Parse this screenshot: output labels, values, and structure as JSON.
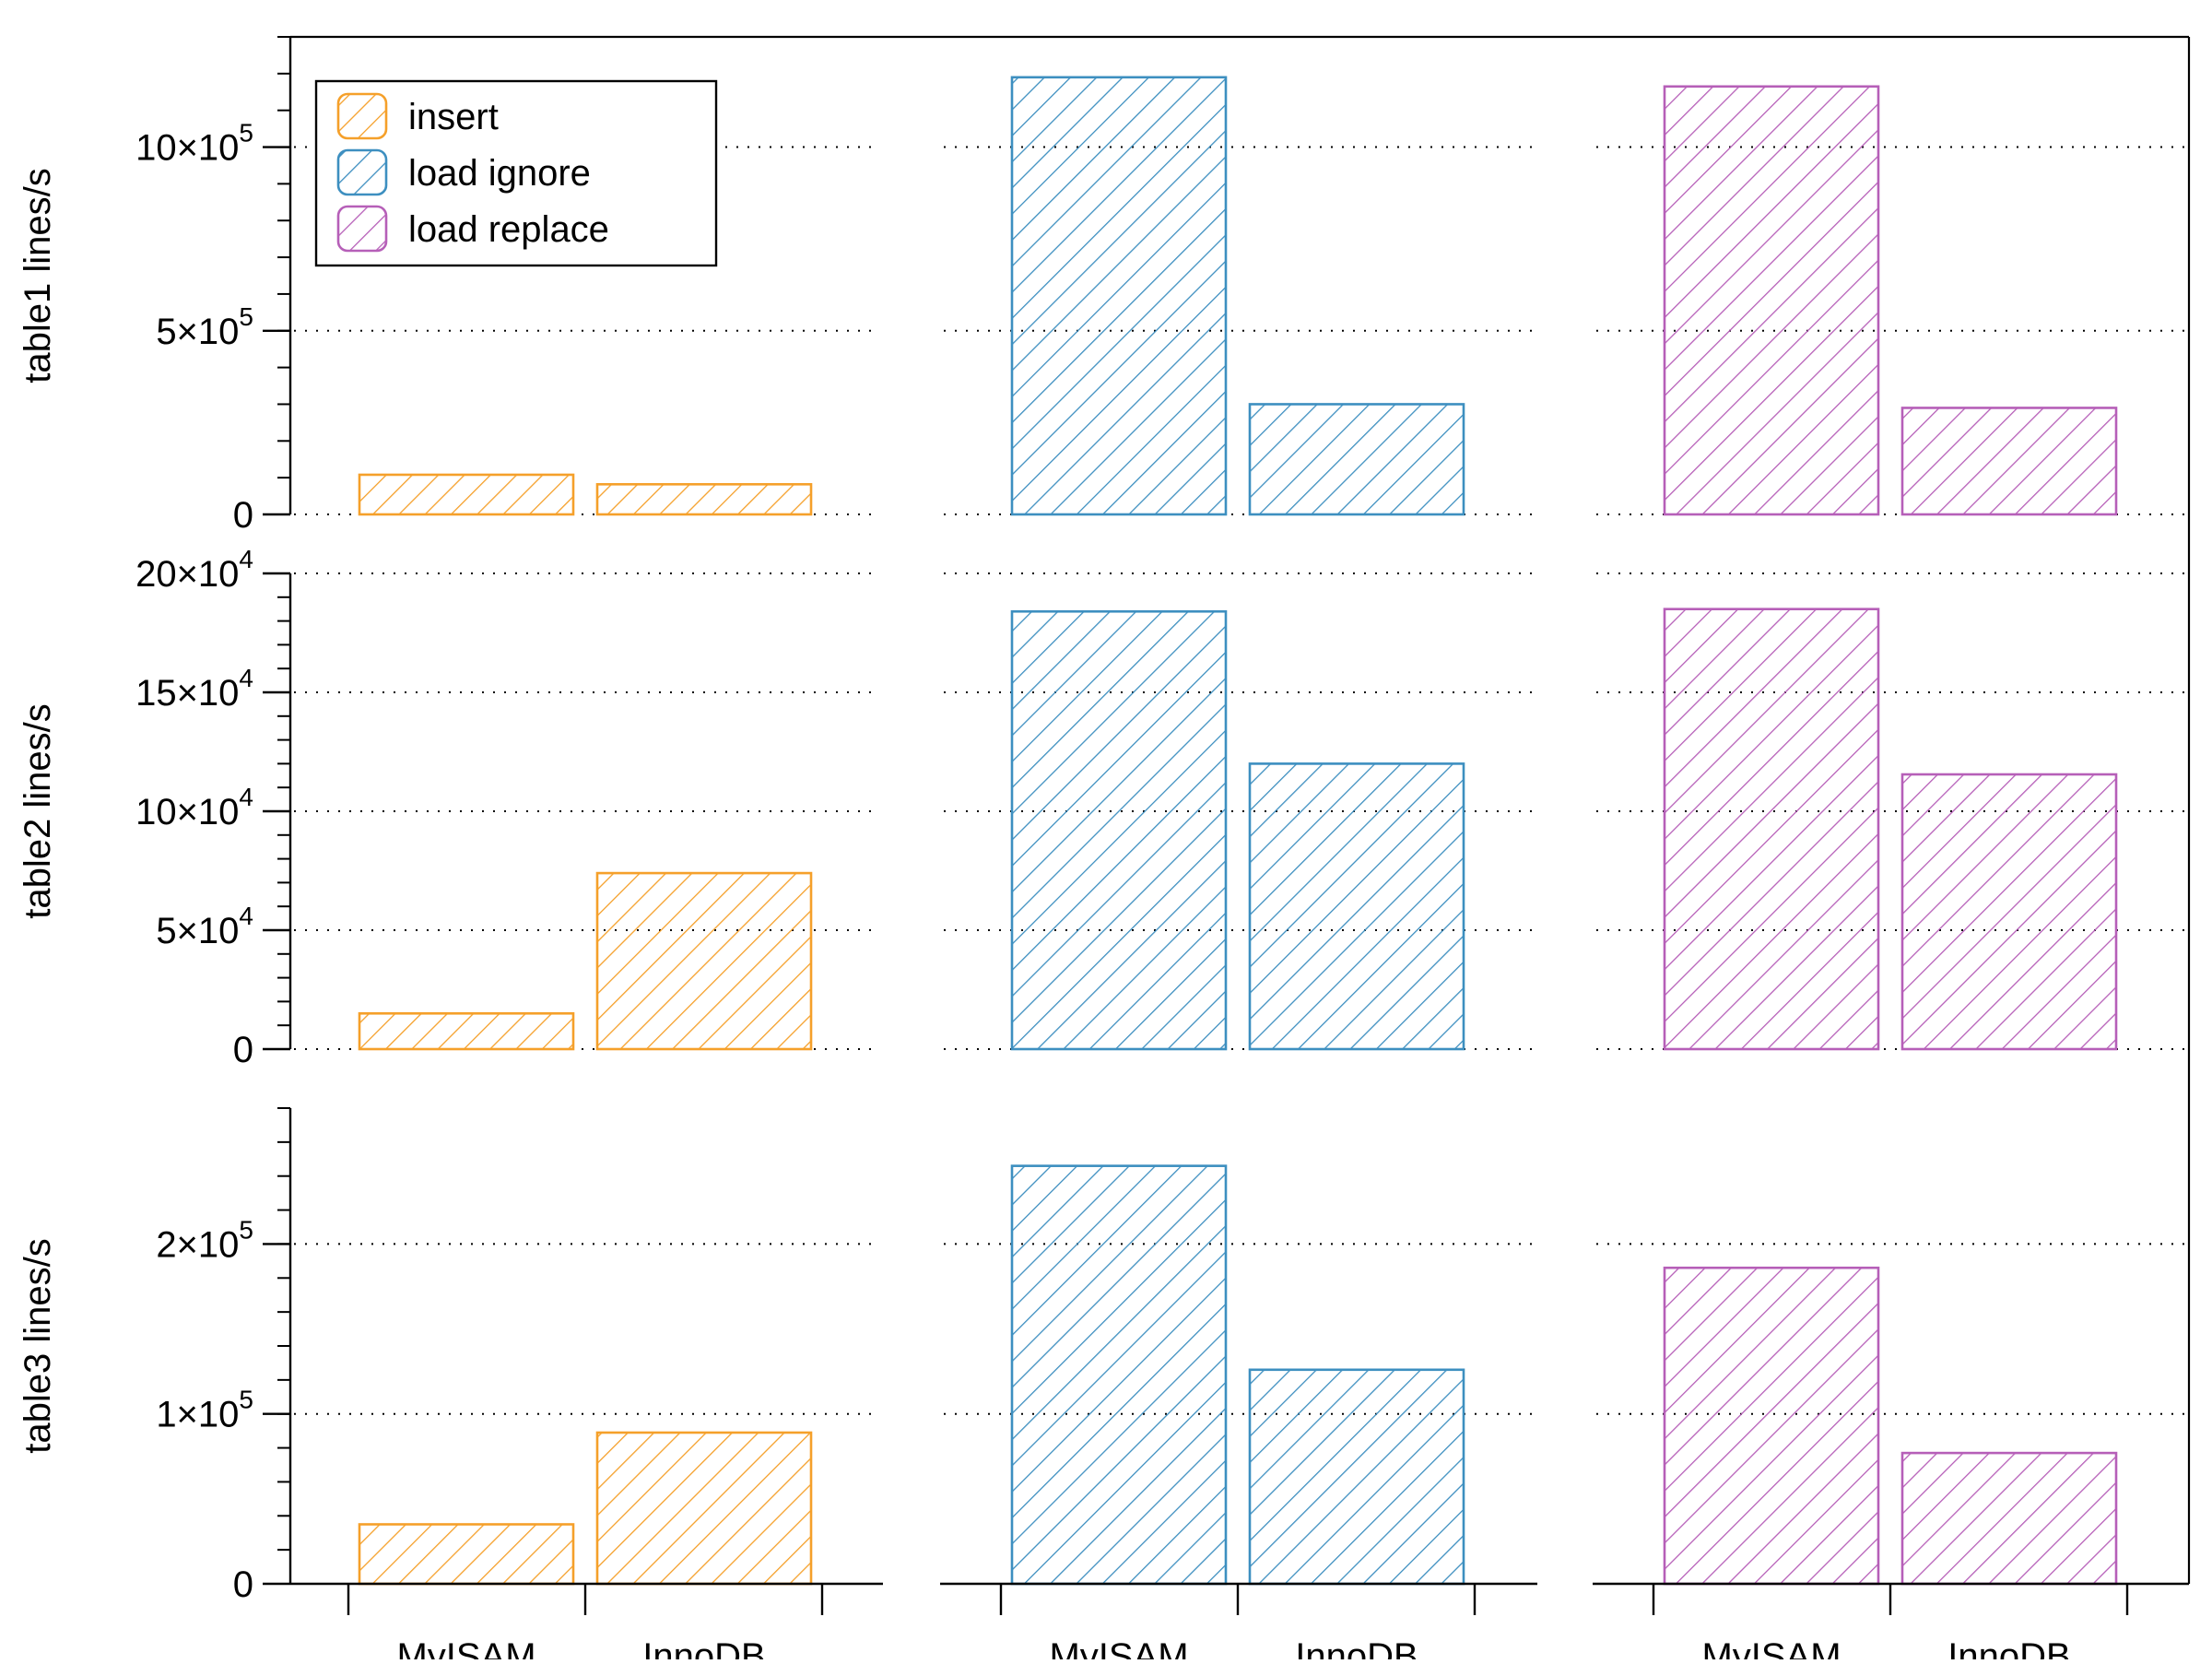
{
  "chart_data": {
    "type": "bar",
    "group_categories": [
      "MyISAM",
      "InnoDB"
    ],
    "series": [
      {
        "name": "insert",
        "color": "#f5a02a"
      },
      {
        "name": "load ignore",
        "color": "#3d8fc0"
      },
      {
        "name": "load replace",
        "color": "#b65fb8"
      }
    ],
    "legend_position": "top-left",
    "grid": "dotted horizontal",
    "panels": [
      {
        "ylabel": "table1 lines/s",
        "ylim": [
          0,
          1300000
        ],
        "ticks": [
          {
            "value": 0,
            "base": "0",
            "exp": ""
          },
          {
            "value": 500000,
            "base": "5×10",
            "exp": "5"
          },
          {
            "value": 1000000,
            "base": "10×10",
            "exp": "5"
          }
        ],
        "minor_step": 100000,
        "values": {
          "insert": [
            108000,
            82000
          ],
          "load ignore": [
            1190000,
            300000
          ],
          "load replace": [
            1165000,
            290000
          ]
        }
      },
      {
        "ylabel": "table2 lines/s",
        "ylim": [
          0,
          200000
        ],
        "ticks": [
          {
            "value": 0,
            "base": "0",
            "exp": ""
          },
          {
            "value": 50000,
            "base": "5×10",
            "exp": "4"
          },
          {
            "value": 100000,
            "base": "10×10",
            "exp": "4"
          },
          {
            "value": 150000,
            "base": "15×10",
            "exp": "4"
          },
          {
            "value": 200000,
            "base": "20×10",
            "exp": "4"
          }
        ],
        "minor_step": 10000,
        "values": {
          "insert": [
            15000,
            74000
          ],
          "load ignore": [
            184000,
            120000
          ],
          "load replace": [
            185000,
            115500
          ]
        }
      },
      {
        "ylabel": "table3 lines/s",
        "ylim": [
          0,
          280000
        ],
        "ticks": [
          {
            "value": 0,
            "base": "0",
            "exp": ""
          },
          {
            "value": 100000,
            "base": "1×10",
            "exp": "5"
          },
          {
            "value": 200000,
            "base": "2×10",
            "exp": "5"
          }
        ],
        "minor_step": 20000,
        "values": {
          "insert": [
            35000,
            89000
          ],
          "load ignore": [
            246000,
            126000
          ],
          "load replace": [
            186000,
            77000
          ]
        }
      }
    ]
  }
}
